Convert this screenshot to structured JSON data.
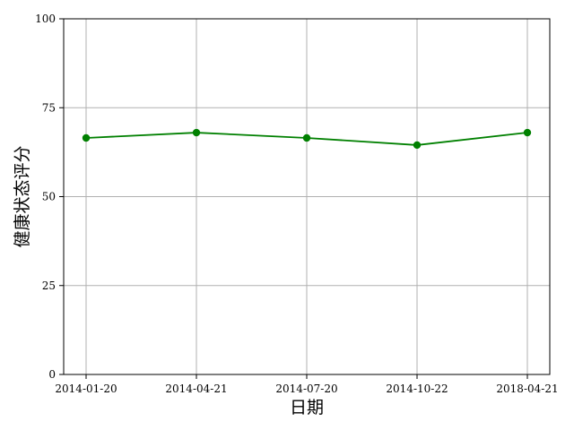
{
  "chart_data": {
    "type": "line",
    "title": "",
    "xlabel": "日期",
    "ylabel": "健康状态评分",
    "categories": [
      "2014-01-20",
      "2014-04-21",
      "2014-07-20",
      "2014-10-22",
      "2018-04-21"
    ],
    "series": [
      {
        "values": [
          66.5,
          68.0,
          66.5,
          64.5,
          68.0
        ]
      }
    ],
    "ylim": [
      0,
      100
    ],
    "yticks": [
      0,
      25,
      50,
      75,
      100
    ],
    "grid": true,
    "legend": "none",
    "colors": {
      "line": "#008000",
      "marker": "#008000",
      "grid": "#b0b0b0",
      "axis": "#000000"
    }
  }
}
